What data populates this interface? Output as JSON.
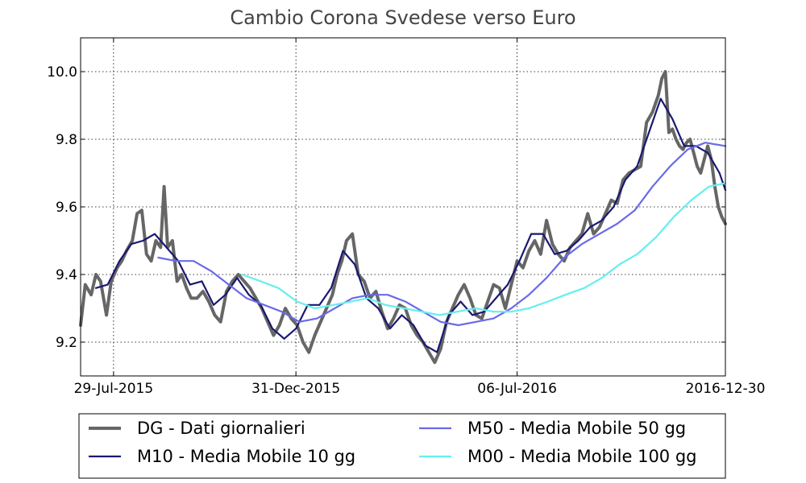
{
  "chart_data": {
    "type": "line",
    "title": "Cambio Corona  Svedese verso Euro",
    "xlabel": "",
    "ylabel": "",
    "xlim": [
      "2015-07-01",
      "2016-12-30"
    ],
    "ylim": [
      9.1,
      10.1
    ],
    "yticks": [
      "9.2",
      "9.4",
      "9.6",
      "9.8",
      "10.0"
    ],
    "xticks": [
      {
        "label": "29-Jul-2015",
        "date": "2015-07-29"
      },
      {
        "label": "31-Dec-2015",
        "date": "2015-12-31"
      },
      {
        "label": "06-Jul-2016",
        "date": "2016-07-06"
      },
      {
        "label": "2016-12-30",
        "date": "2016-12-30"
      }
    ],
    "grid": true,
    "legend_position": "bottom",
    "series": [
      {
        "name": "DG - Dati giornalieri",
        "color": "#666666",
        "x": [
          "2015-07-01",
          "2015-07-05",
          "2015-07-10",
          "2015-07-14",
          "2015-07-18",
          "2015-07-23",
          "2015-07-27",
          "2015-08-01",
          "2015-08-05",
          "2015-08-09",
          "2015-08-14",
          "2015-08-18",
          "2015-08-22",
          "2015-08-26",
          "2015-08-30",
          "2015-09-03",
          "2015-09-07",
          "2015-09-10",
          "2015-09-13",
          "2015-09-17",
          "2015-09-21",
          "2015-09-25",
          "2015-09-29",
          "2015-10-03",
          "2015-10-08",
          "2015-10-13",
          "2015-10-18",
          "2015-10-23",
          "2015-10-28",
          "2015-11-02",
          "2015-11-07",
          "2015-11-12",
          "2015-11-17",
          "2015-11-22",
          "2015-11-27",
          "2015-12-02",
          "2015-12-07",
          "2015-12-12",
          "2015-12-17",
          "2015-12-22",
          "2015-12-27",
          "2016-01-01",
          "2016-01-06",
          "2016-01-11",
          "2016-01-16",
          "2016-01-21",
          "2016-01-26",
          "2016-01-31",
          "2016-02-04",
          "2016-02-08",
          "2016-02-12",
          "2016-02-17",
          "2016-02-22",
          "2016-02-27",
          "2016-03-03",
          "2016-03-08",
          "2016-03-13",
          "2016-03-18",
          "2016-03-23",
          "2016-03-28",
          "2016-04-02",
          "2016-04-07",
          "2016-04-12",
          "2016-04-17",
          "2016-04-22",
          "2016-04-27",
          "2016-05-02",
          "2016-05-07",
          "2016-05-12",
          "2016-05-17",
          "2016-05-22",
          "2016-05-27",
          "2016-06-01",
          "2016-06-06",
          "2016-06-11",
          "2016-06-16",
          "2016-06-21",
          "2016-06-26",
          "2016-07-01",
          "2016-07-06",
          "2016-07-11",
          "2016-07-16",
          "2016-07-21",
          "2016-07-26",
          "2016-07-31",
          "2016-08-05",
          "2016-08-10",
          "2016-08-15",
          "2016-08-20",
          "2016-08-25",
          "2016-08-30",
          "2016-09-04",
          "2016-09-09",
          "2016-09-14",
          "2016-09-19",
          "2016-09-24",
          "2016-09-29",
          "2016-10-04",
          "2016-10-09",
          "2016-10-14",
          "2016-10-19",
          "2016-10-24",
          "2016-10-29",
          "2016-11-03",
          "2016-11-06",
          "2016-11-09",
          "2016-11-12",
          "2016-11-15",
          "2016-11-18",
          "2016-11-21",
          "2016-11-24",
          "2016-11-27",
          "2016-11-30",
          "2016-12-03",
          "2016-12-06",
          "2016-12-09",
          "2016-12-12",
          "2016-12-15",
          "2016-12-18",
          "2016-12-21",
          "2016-12-24",
          "2016-12-27",
          "2016-12-30"
        ],
        "values": [
          9.25,
          9.37,
          9.34,
          9.4,
          9.38,
          9.28,
          9.38,
          9.42,
          9.44,
          9.47,
          9.5,
          9.58,
          9.59,
          9.46,
          9.44,
          9.5,
          9.48,
          9.66,
          9.48,
          9.5,
          9.38,
          9.4,
          9.36,
          9.33,
          9.33,
          9.35,
          9.32,
          9.28,
          9.26,
          9.35,
          9.38,
          9.4,
          9.38,
          9.36,
          9.33,
          9.3,
          9.26,
          9.22,
          9.25,
          9.3,
          9.27,
          9.25,
          9.2,
          9.17,
          9.22,
          9.26,
          9.3,
          9.34,
          9.4,
          9.44,
          9.5,
          9.52,
          9.4,
          9.38,
          9.33,
          9.35,
          9.29,
          9.24,
          9.27,
          9.31,
          9.3,
          9.25,
          9.22,
          9.2,
          9.17,
          9.14,
          9.18,
          9.26,
          9.3,
          9.34,
          9.37,
          9.33,
          9.28,
          9.27,
          9.32,
          9.37,
          9.36,
          9.3,
          9.37,
          9.44,
          9.42,
          9.47,
          9.5,
          9.46,
          9.56,
          9.49,
          9.46,
          9.44,
          9.48,
          9.5,
          9.52,
          9.58,
          9.52,
          9.54,
          9.58,
          9.62,
          9.61,
          9.68,
          9.7,
          9.71,
          9.72,
          9.85,
          9.88,
          9.93,
          9.98,
          10.0,
          9.82,
          9.83,
          9.8,
          9.78,
          9.77,
          9.79,
          9.8,
          9.76,
          9.72,
          9.7,
          9.74,
          9.78,
          9.74,
          9.66,
          9.6,
          9.57,
          9.55
        ]
      },
      {
        "name": "M10 - Media Mobile 10 gg",
        "color": "#191970",
        "x": [
          "2015-07-14",
          "2015-07-24",
          "2015-08-03",
          "2015-08-13",
          "2015-08-23",
          "2015-09-02",
          "2015-09-12",
          "2015-09-22",
          "2015-10-02",
          "2015-10-12",
          "2015-10-22",
          "2015-11-01",
          "2015-11-11",
          "2015-11-21",
          "2015-12-01",
          "2015-12-11",
          "2015-12-21",
          "2015-12-31",
          "2016-01-10",
          "2016-01-20",
          "2016-01-30",
          "2016-02-09",
          "2016-02-19",
          "2016-02-29",
          "2016-03-10",
          "2016-03-20",
          "2016-03-30",
          "2016-04-09",
          "2016-04-19",
          "2016-04-29",
          "2016-05-09",
          "2016-05-19",
          "2016-05-29",
          "2016-06-08",
          "2016-06-18",
          "2016-06-28",
          "2016-07-08",
          "2016-07-18",
          "2016-07-28",
          "2016-08-07",
          "2016-08-17",
          "2016-08-27",
          "2016-09-06",
          "2016-09-16",
          "2016-09-26",
          "2016-10-06",
          "2016-10-16",
          "2016-10-26",
          "2016-11-05",
          "2016-11-15",
          "2016-11-25",
          "2016-12-05",
          "2016-12-15",
          "2016-12-25",
          "2016-12-30"
        ],
        "values": [
          9.36,
          9.37,
          9.44,
          9.49,
          9.5,
          9.52,
          9.48,
          9.44,
          9.37,
          9.38,
          9.31,
          9.34,
          9.39,
          9.34,
          9.31,
          9.24,
          9.21,
          9.24,
          9.31,
          9.31,
          9.36,
          9.47,
          9.43,
          9.33,
          9.3,
          9.24,
          9.28,
          9.25,
          9.19,
          9.17,
          9.28,
          9.32,
          9.28,
          9.29,
          9.33,
          9.37,
          9.44,
          9.52,
          9.52,
          9.46,
          9.47,
          9.5,
          9.54,
          9.56,
          9.6,
          9.68,
          9.72,
          9.82,
          9.92,
          9.86,
          9.78,
          9.78,
          9.76,
          9.7,
          9.65
        ]
      },
      {
        "name": "M50 - Media Mobile 50 gg",
        "color": "#6a6ae8",
        "x": [
          "2015-09-05",
          "2015-09-20",
          "2015-10-05",
          "2015-10-20",
          "2015-11-04",
          "2015-11-19",
          "2015-12-04",
          "2015-12-19",
          "2016-01-03",
          "2016-01-18",
          "2016-02-02",
          "2016-02-17",
          "2016-03-03",
          "2016-03-18",
          "2016-04-02",
          "2016-04-17",
          "2016-05-02",
          "2016-05-17",
          "2016-06-01",
          "2016-06-16",
          "2016-07-01",
          "2016-07-16",
          "2016-07-31",
          "2016-08-15",
          "2016-08-30",
          "2016-09-14",
          "2016-09-29",
          "2016-10-14",
          "2016-10-29",
          "2016-11-13",
          "2016-11-28",
          "2016-12-13",
          "2016-12-30"
        ],
        "values": [
          9.45,
          9.44,
          9.44,
          9.41,
          9.37,
          9.33,
          9.31,
          9.29,
          9.26,
          9.27,
          9.3,
          9.33,
          9.34,
          9.34,
          9.32,
          9.29,
          9.26,
          9.25,
          9.26,
          9.27,
          9.3,
          9.34,
          9.39,
          9.45,
          9.49,
          9.52,
          9.55,
          9.59,
          9.66,
          9.72,
          9.77,
          9.79,
          9.78
        ]
      },
      {
        "name": "M00 - Media Mobile 100 gg",
        "color": "#66eeee",
        "x": [
          "2015-11-15",
          "2015-12-01",
          "2015-12-16",
          "2016-01-01",
          "2016-01-16",
          "2016-02-01",
          "2016-02-16",
          "2016-03-01",
          "2016-03-16",
          "2016-04-01",
          "2016-04-16",
          "2016-05-01",
          "2016-05-16",
          "2016-06-01",
          "2016-06-16",
          "2016-07-01",
          "2016-07-16",
          "2016-08-01",
          "2016-08-16",
          "2016-09-01",
          "2016-09-16",
          "2016-10-01",
          "2016-10-16",
          "2016-11-01",
          "2016-11-16",
          "2016-12-01",
          "2016-12-16",
          "2016-12-30"
        ],
        "values": [
          9.4,
          9.38,
          9.36,
          9.32,
          9.3,
          9.31,
          9.32,
          9.33,
          9.31,
          9.3,
          9.29,
          9.28,
          9.29,
          9.3,
          9.29,
          9.29,
          9.3,
          9.32,
          9.34,
          9.36,
          9.39,
          9.43,
          9.46,
          9.51,
          9.57,
          9.62,
          9.66,
          9.67
        ]
      }
    ]
  }
}
